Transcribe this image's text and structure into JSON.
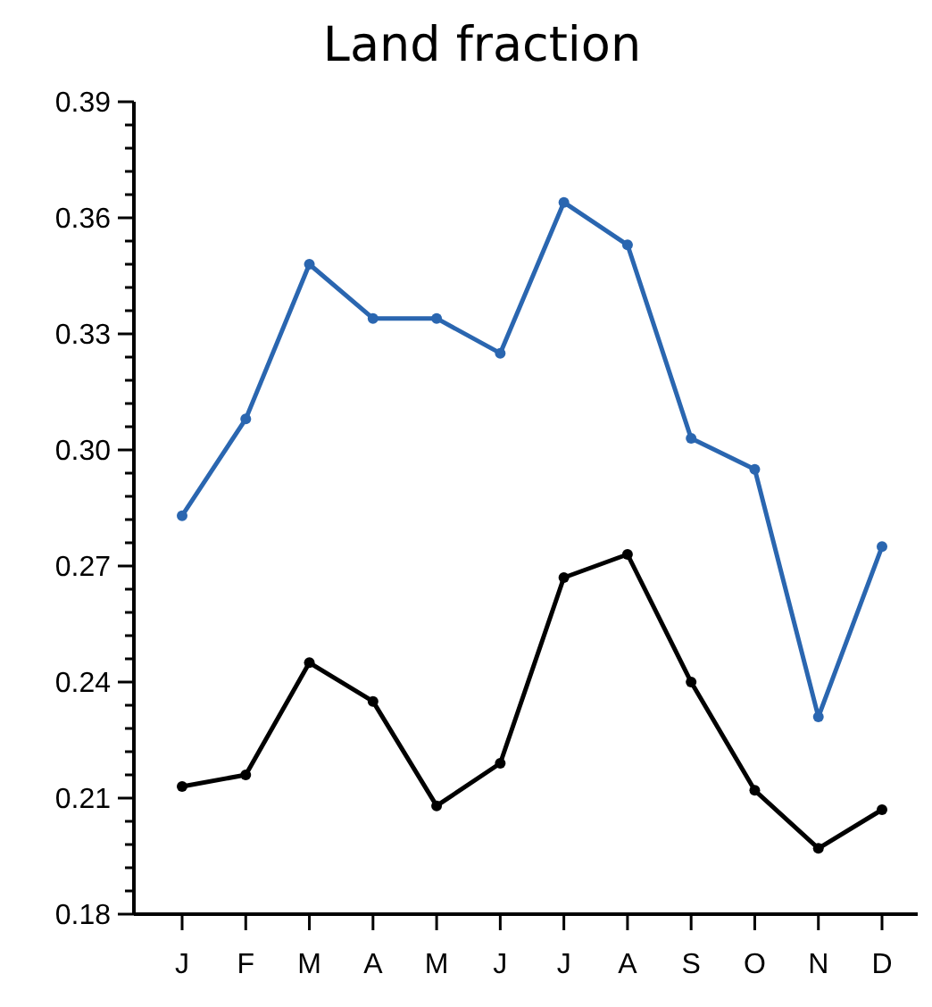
{
  "chart_data": {
    "type": "line",
    "title": "Land fraction",
    "categories": [
      "J",
      "F",
      "M",
      "A",
      "M",
      "J",
      "J",
      "A",
      "S",
      "O",
      "N",
      "D"
    ],
    "series": [
      {
        "color": "#2a66b0",
        "values": [
          0.283,
          0.308,
          0.348,
          0.334,
          0.334,
          0.325,
          0.364,
          0.353,
          0.303,
          0.295,
          0.231,
          0.275
        ]
      },
      {
        "color": "#000000",
        "values": [
          0.213,
          0.216,
          0.245,
          0.235,
          0.208,
          0.219,
          0.267,
          0.273,
          0.24,
          0.212,
          0.197,
          0.207
        ]
      }
    ],
    "ylim": [
      0.18,
      0.39
    ],
    "yticks": [
      {
        "value": 0.18,
        "label": "0.18"
      },
      {
        "value": 0.186,
        "label": null
      },
      {
        "value": 0.192,
        "label": null
      },
      {
        "value": 0.198,
        "label": null
      },
      {
        "value": 0.204,
        "label": null
      },
      {
        "value": 0.21,
        "label": "0.21"
      },
      {
        "value": 0.216,
        "label": null
      },
      {
        "value": 0.222,
        "label": null
      },
      {
        "value": 0.228,
        "label": null
      },
      {
        "value": 0.234,
        "label": null
      },
      {
        "value": 0.24,
        "label": "0.24"
      },
      {
        "value": 0.246,
        "label": null
      },
      {
        "value": 0.252,
        "label": null
      },
      {
        "value": 0.258,
        "label": null
      },
      {
        "value": 0.264,
        "label": null
      },
      {
        "value": 0.27,
        "label": "0.27"
      },
      {
        "value": 0.276,
        "label": null
      },
      {
        "value": 0.282,
        "label": null
      },
      {
        "value": 0.288,
        "label": null
      },
      {
        "value": 0.294,
        "label": null
      },
      {
        "value": 0.3,
        "label": "0.30"
      },
      {
        "value": 0.306,
        "label": null
      },
      {
        "value": 0.312,
        "label": null
      },
      {
        "value": 0.318,
        "label": null
      },
      {
        "value": 0.324,
        "label": null
      },
      {
        "value": 0.33,
        "label": "0.33"
      },
      {
        "value": 0.336,
        "label": null
      },
      {
        "value": 0.342,
        "label": null
      },
      {
        "value": 0.348,
        "label": null
      },
      {
        "value": 0.354,
        "label": null
      },
      {
        "value": 0.36,
        "label": "0.36"
      },
      {
        "value": 0.366,
        "label": null
      },
      {
        "value": 0.372,
        "label": null
      },
      {
        "value": 0.378,
        "label": null
      },
      {
        "value": 0.384,
        "label": null
      },
      {
        "value": 0.39,
        "label": "0.39"
      }
    ],
    "marker": "circle",
    "line_style": "solid"
  }
}
